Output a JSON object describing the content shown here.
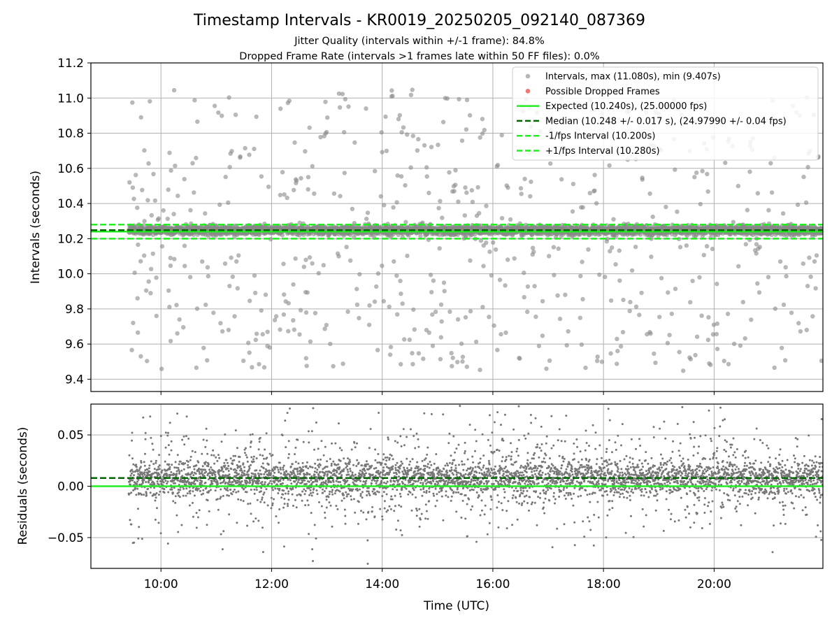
{
  "figure": {
    "title": "Timestamp Intervals - KR0019_20250205_092140_087369",
    "subtitle_1": "Jitter Quality (intervals within +/-1 frame): 84.8%",
    "subtitle_2": "Dropped Frame Rate (intervals >1 frames late within 50 FF files): 0.0%"
  },
  "chart_data": [
    {
      "type": "scatter",
      "name": "intervals",
      "xlabel": "",
      "ylabel": "Intervals (seconds)",
      "x_unit": "time of day (UTC)",
      "xlim": [
        "08:44",
        "21:58"
      ],
      "ylim": [
        9.33,
        11.2
      ],
      "y_ticks": [
        "9.4",
        "9.6",
        "9.8",
        "10.0",
        "10.2",
        "10.4",
        "10.6",
        "10.8",
        "11.0",
        "11.2"
      ],
      "grid": true,
      "legend_position": "top-right",
      "legend": [
        {
          "label": "Intervals, max (11.080s), min (9.407s)",
          "color": "#999999",
          "style": "marker"
        },
        {
          "label": "Possible Dropped Frames",
          "color": "#ee6666",
          "style": "marker"
        },
        {
          "label": "Expected (10.240s), (25.00000 fps)",
          "color": "#22ee22",
          "style": "solid"
        },
        {
          "label": "Median (10.248 +/- 0.017 s), (24.97990 +/- 0.04 fps)",
          "color": "#006600",
          "style": "dashed"
        },
        {
          "label": "-1/fps Interval (10.200s)",
          "color": "#22ee22",
          "style": "dashed"
        },
        {
          "label": "+1/fps Interval (10.280s)",
          "color": "#22ee22",
          "style": "dashed"
        }
      ],
      "reference_lines": {
        "expected": 10.24,
        "median": 10.248,
        "minus_one_fps": 10.2,
        "plus_one_fps": 10.28
      },
      "series": [
        {
          "name": "Intervals",
          "time_range": [
            "09:25",
            "21:58"
          ],
          "count": 4400,
          "max": 11.08,
          "min": 9.407,
          "median": 10.248,
          "std": 0.017
        },
        {
          "name": "Possible Dropped Frames",
          "count": 0
        }
      ]
    },
    {
      "type": "scatter",
      "name": "residuals",
      "xlabel": "Time (UTC)",
      "ylabel": "Residuals (seconds)",
      "xlim": [
        "08:44",
        "21:58"
      ],
      "ylim": [
        -0.08,
        0.08
      ],
      "x_ticks": [
        "10:00",
        "12:00",
        "14:00",
        "16:00",
        "18:00",
        "20:00"
      ],
      "y_ticks": [
        "−0.05",
        "0.00",
        "0.05"
      ],
      "grid": true,
      "reference_lines": {
        "zero": 0.0,
        "median_offset": 0.008
      },
      "series": [
        {
          "name": "Residuals",
          "time_range": [
            "09:25",
            "21:58"
          ],
          "count": 4400,
          "center": 0.008,
          "spread_std": 0.017
        }
      ]
    }
  ],
  "colors": {
    "points": "#888888",
    "residual_points": "#777777",
    "expected": "#22ee22",
    "median": "#006600",
    "grid": "#b0b0b0"
  }
}
